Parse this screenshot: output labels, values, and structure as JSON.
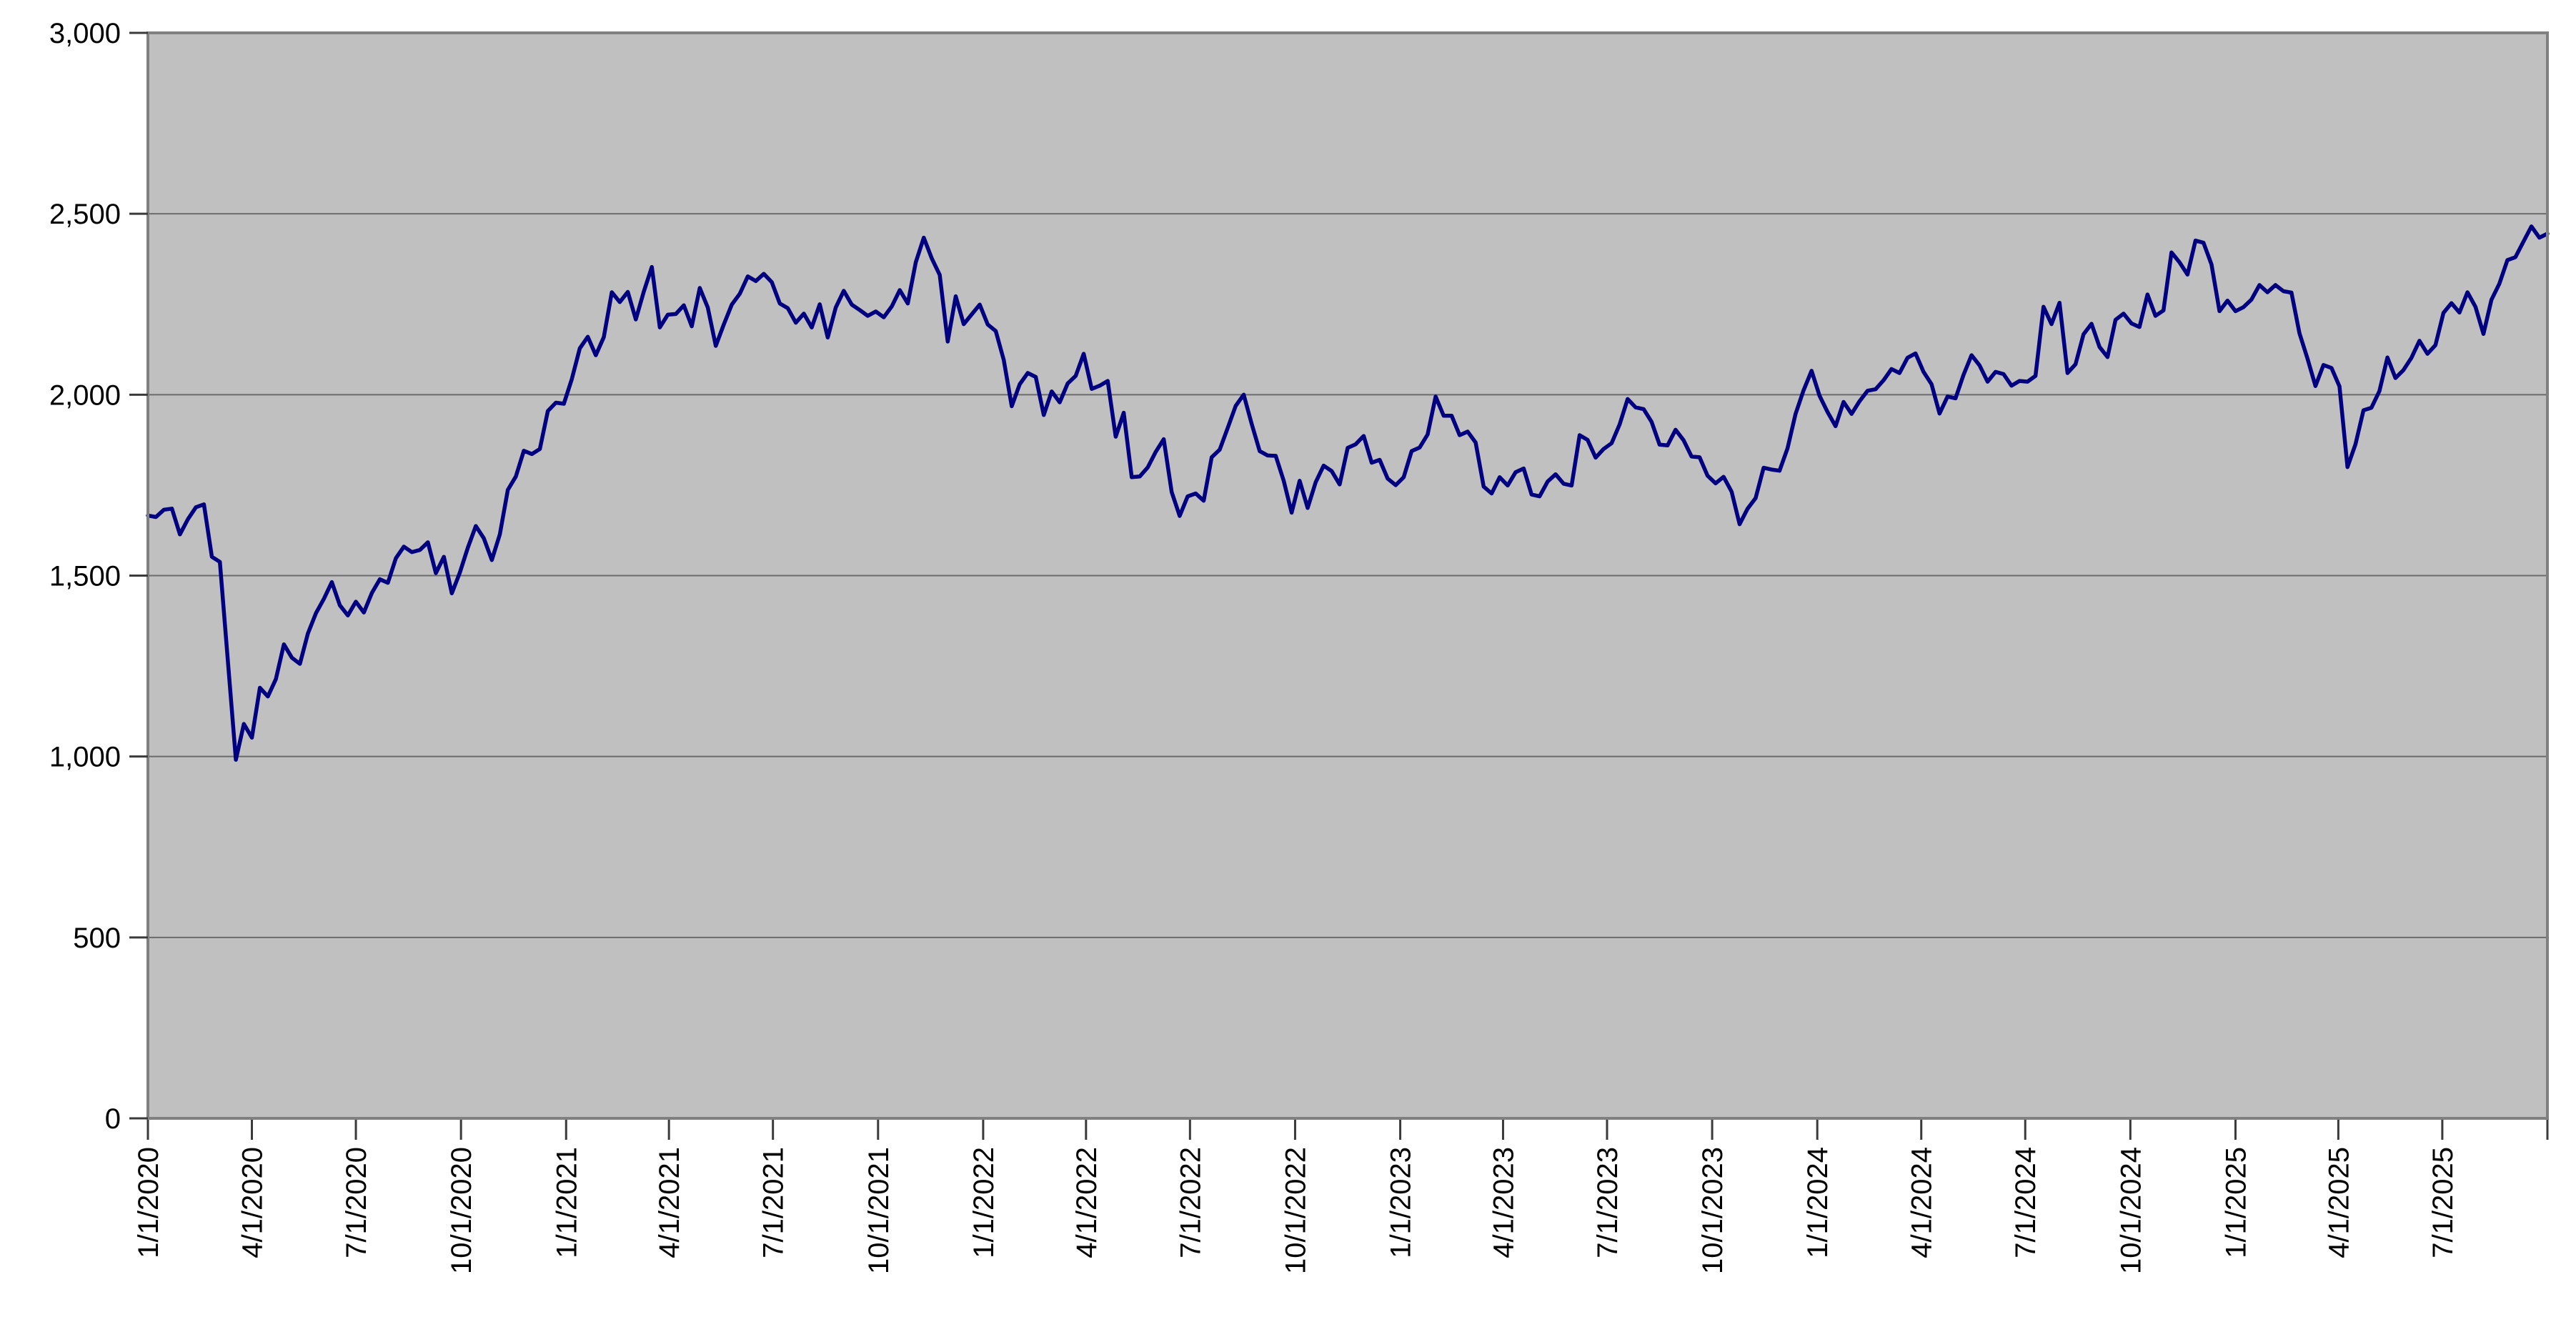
{
  "chart_data": {
    "type": "line",
    "title": "",
    "legend_position": "none",
    "x_axis": {
      "start_date": "1/1/2020",
      "end_date": "10/1/2025",
      "tick_labels": [
        "1/1/2020",
        "4/1/2020",
        "7/1/2020",
        "10/1/2020",
        "1/1/2021",
        "4/1/2021",
        "7/1/2021",
        "10/1/2021",
        "1/1/2022",
        "4/1/2022",
        "7/1/2022",
        "10/1/2022",
        "1/1/2023",
        "4/1/2023",
        "7/1/2023",
        "10/1/2023",
        "1/1/2024",
        "4/1/2024",
        "7/1/2024",
        "10/1/2024",
        "1/1/2025",
        "4/1/2025",
        "7/1/2025"
      ],
      "label_rotation_deg": -90,
      "unlabeled_end_tick": true
    },
    "y_axis": {
      "min": 0,
      "max": 3000,
      "major_unit": 500,
      "tick_labels": [
        "0",
        "500",
        "1,000",
        "1,500",
        "2,000",
        "2,500",
        "3,000"
      ]
    },
    "gridlines": "horizontal",
    "series": {
      "sample_interval_days": 7,
      "values": [
        1666,
        1662,
        1682,
        1685,
        1614,
        1656,
        1689,
        1697,
        1552,
        1538,
        1264,
        991,
        1090,
        1052,
        1190,
        1166,
        1214,
        1310,
        1273,
        1256,
        1340,
        1396,
        1436,
        1482,
        1418,
        1390,
        1428,
        1398,
        1452,
        1490,
        1480,
        1548,
        1580,
        1565,
        1571,
        1592,
        1507,
        1552,
        1451,
        1508,
        1577,
        1637,
        1603,
        1543,
        1614,
        1737,
        1774,
        1845,
        1836,
        1850,
        1955,
        1978,
        1975,
        2043,
        2128,
        2160,
        2109,
        2159,
        2283,
        2256,
        2284,
        2208,
        2285,
        2353,
        2186,
        2221,
        2223,
        2247,
        2189,
        2295,
        2241,
        2135,
        2194,
        2249,
        2279,
        2327,
        2314,
        2334,
        2311,
        2252,
        2239,
        2199,
        2224,
        2186,
        2250,
        2158,
        2241,
        2287,
        2249,
        2234,
        2218,
        2230,
        2214,
        2244,
        2289,
        2252,
        2366,
        2434,
        2377,
        2331,
        2147,
        2272,
        2195,
        2222,
        2249,
        2194,
        2176,
        2096,
        1968,
        2029,
        2060,
        2049,
        1944,
        2009,
        1979,
        2031,
        2052,
        2113,
        2016,
        2025,
        2038,
        1884,
        1950,
        1772,
        1774,
        1799,
        1842,
        1877,
        1731,
        1665,
        1719,
        1727,
        1707,
        1827,
        1848,
        1908,
        1969,
        2000,
        1919,
        1844,
        1832,
        1831,
        1762,
        1674,
        1762,
        1687,
        1758,
        1804,
        1789,
        1752,
        1853,
        1863,
        1886,
        1812,
        1820,
        1768,
        1750,
        1772,
        1844,
        1854,
        1890,
        1995,
        1942,
        1942,
        1888,
        1898,
        1868,
        1746,
        1727,
        1772,
        1749,
        1786,
        1796,
        1724,
        1719,
        1760,
        1780,
        1754,
        1749,
        1888,
        1875,
        1826,
        1850,
        1866,
        1918,
        1988,
        1965,
        1960,
        1925,
        1862,
        1860,
        1903,
        1874,
        1829,
        1827,
        1776,
        1755,
        1773,
        1732,
        1642,
        1685,
        1714,
        1798,
        1793,
        1790,
        1852,
        1947,
        2012,
        2066,
        1997,
        1952,
        1913,
        1980,
        1947,
        1982,
        2011,
        2015,
        2040,
        2071,
        2060,
        2102,
        2114,
        2063,
        2029,
        1948,
        1995,
        1990,
        2055,
        2109,
        2081,
        2036,
        2063,
        2057,
        2025,
        2038,
        2036,
        2052,
        2243,
        2195,
        2254,
        2060,
        2084,
        2167,
        2196,
        2132,
        2104,
        2207,
        2224,
        2197,
        2187,
        2277,
        2218,
        2233,
        2393,
        2366,
        2332,
        2426,
        2420,
        2360,
        2231,
        2260,
        2231,
        2242,
        2263,
        2303,
        2283,
        2303,
        2286,
        2282,
        2170,
        2100,
        2024,
        2082,
        2074,
        2023,
        1800,
        1863,
        1957,
        1964,
        2010,
        2103,
        2046,
        2068,
        2102,
        2149,
        2113,
        2137,
        2226,
        2253,
        2227,
        2283,
        2243,
        2168,
        2262,
        2307,
        2372,
        2380,
        2423,
        2465,
        2434,
        2445
      ]
    },
    "style": {
      "line_color": "#000080",
      "plot_background": "#c0c0c0",
      "page_background": "#ffffff",
      "gridline_color": "#6b6b6b",
      "plot_border_color": "#808080",
      "tick_color": "#3a3a3a",
      "text_color": "#000000"
    }
  }
}
